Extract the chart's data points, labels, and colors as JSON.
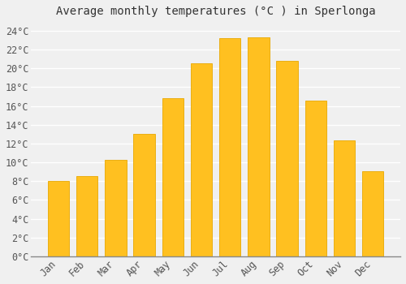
{
  "title": "Average monthly temperatures (°C ) in Sperlonga",
  "months": [
    "Jan",
    "Feb",
    "Mar",
    "Apr",
    "May",
    "Jun",
    "Jul",
    "Aug",
    "Sep",
    "Oct",
    "Nov",
    "Dec"
  ],
  "temperatures": [
    8.0,
    8.5,
    10.3,
    13.0,
    16.8,
    20.5,
    23.2,
    23.3,
    20.8,
    16.6,
    12.3,
    9.1
  ],
  "bar_color": "#FFC020",
  "bar_edge_color": "#E8A800",
  "background_color": "#F0F0F0",
  "plot_bg_color": "#F0F0F0",
  "grid_color": "#FFFFFF",
  "ylim": [
    0,
    25
  ],
  "yticks": [
    0,
    2,
    4,
    6,
    8,
    10,
    12,
    14,
    16,
    18,
    20,
    22,
    24
  ],
  "title_fontsize": 10,
  "tick_fontsize": 8.5
}
